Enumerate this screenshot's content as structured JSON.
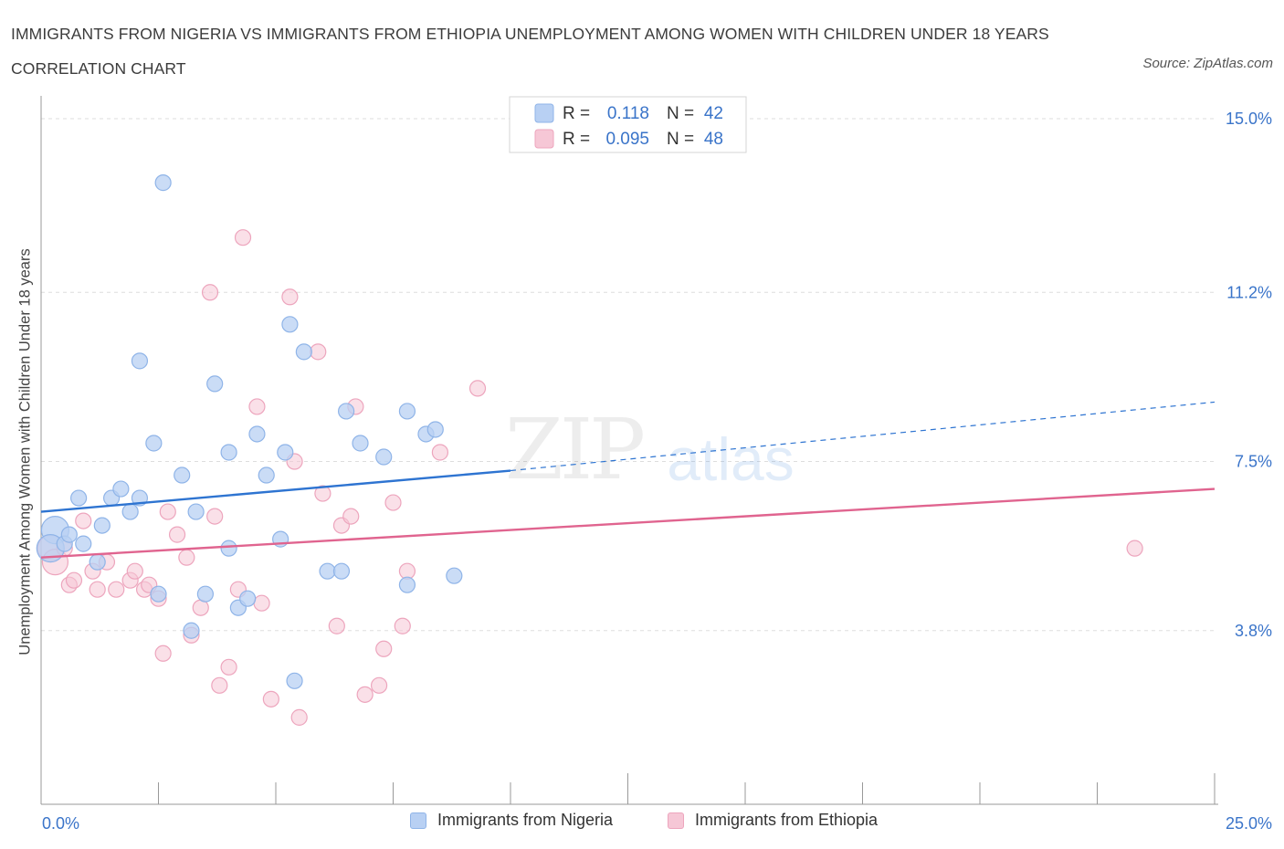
{
  "title": "IMMIGRANTS FROM NIGERIA VS IMMIGRANTS FROM ETHIOPIA UNEMPLOYMENT AMONG WOMEN WITH CHILDREN UNDER 18 YEARS CORRELATION CHART",
  "source": "Source: ZipAtlas.com",
  "watermark": {
    "zip": "ZIP",
    "atlas": "atlas"
  },
  "colors": {
    "nigeria_fill": "#b8d0f3",
    "nigeria_stroke": "#8fb4e8",
    "nigeria_line": "#2e74d1",
    "ethiopia_fill": "#f6c7d6",
    "ethiopia_stroke": "#eda5bd",
    "ethiopia_line": "#e0648f",
    "axis_text": "#3a74c9",
    "grid": "#dddddd"
  },
  "legend_top": {
    "rows": [
      {
        "r_label": "R =",
        "r_value": "0.118",
        "n_label": "N =",
        "n_value": "42"
      },
      {
        "r_label": "R =",
        "r_value": "0.095",
        "n_label": "N =",
        "n_value": "48"
      }
    ]
  },
  "chart_data": {
    "type": "scatter",
    "title": "IMMIGRANTS FROM NIGERIA VS IMMIGRANTS FROM ETHIOPIA UNEMPLOYMENT AMONG WOMEN WITH CHILDREN UNDER 18 YEARS CORRELATION CHART",
    "xlabel": "",
    "ylabel": "Unemployment Among Women with Children Under 18 years",
    "xlim": [
      0,
      25
    ],
    "ylim": [
      0,
      15.3
    ],
    "x_tick_labels": [
      "0.0%",
      "25.0%"
    ],
    "y_ticks": [
      3.8,
      7.5,
      11.2,
      15.0
    ],
    "y_tick_labels": [
      "3.8%",
      "7.5%",
      "11.2%",
      "15.0%"
    ],
    "grid": true,
    "legend_placement": "bottom-center",
    "series": [
      {
        "name": "Immigrants from Nigeria",
        "r": 0.118,
        "n": 42,
        "trend": {
          "x0": 0,
          "y0": 6.4,
          "x1": 10,
          "y1": 7.3,
          "dashed_to_x": 25,
          "dashed_to_y": 8.8
        },
        "points": [
          [
            0.3,
            6.0
          ],
          [
            0.2,
            5.6
          ],
          [
            0.5,
            5.7
          ],
          [
            0.6,
            5.9
          ],
          [
            0.8,
            6.7
          ],
          [
            0.9,
            5.7
          ],
          [
            1.3,
            6.1
          ],
          [
            1.2,
            5.3
          ],
          [
            1.5,
            6.7
          ],
          [
            1.7,
            6.9
          ],
          [
            1.9,
            6.4
          ],
          [
            2.1,
            6.7
          ],
          [
            2.1,
            9.7
          ],
          [
            2.4,
            7.9
          ],
          [
            2.6,
            13.6
          ],
          [
            2.5,
            4.6
          ],
          [
            3.0,
            7.2
          ],
          [
            3.2,
            3.8
          ],
          [
            3.3,
            6.4
          ],
          [
            3.5,
            4.6
          ],
          [
            3.7,
            9.2
          ],
          [
            4.0,
            5.6
          ],
          [
            4.0,
            7.7
          ],
          [
            4.2,
            4.3
          ],
          [
            4.4,
            4.5
          ],
          [
            4.6,
            8.1
          ],
          [
            4.8,
            7.2
          ],
          [
            5.1,
            5.8
          ],
          [
            5.2,
            7.7
          ],
          [
            5.3,
            10.5
          ],
          [
            5.4,
            2.7
          ],
          [
            5.6,
            9.9
          ],
          [
            6.1,
            5.1
          ],
          [
            6.4,
            5.1
          ],
          [
            6.5,
            8.6
          ],
          [
            6.8,
            7.9
          ],
          [
            7.3,
            7.6
          ],
          [
            7.8,
            8.6
          ],
          [
            7.8,
            4.8
          ],
          [
            8.2,
            8.1
          ],
          [
            8.4,
            8.2
          ],
          [
            8.8,
            5.0
          ]
        ]
      },
      {
        "name": "Immigrants from Ethiopia",
        "r": 0.095,
        "n": 48,
        "trend": {
          "x0": 0,
          "y0": 5.4,
          "x1": 25,
          "y1": 6.9
        },
        "points": [
          [
            0.2,
            5.6
          ],
          [
            0.3,
            5.3
          ],
          [
            0.5,
            5.6
          ],
          [
            0.6,
            4.8
          ],
          [
            0.7,
            4.9
          ],
          [
            0.9,
            6.2
          ],
          [
            1.1,
            5.1
          ],
          [
            1.2,
            4.7
          ],
          [
            1.4,
            5.3
          ],
          [
            1.6,
            4.7
          ],
          [
            1.9,
            4.9
          ],
          [
            2.0,
            5.1
          ],
          [
            2.2,
            4.7
          ],
          [
            2.3,
            4.8
          ],
          [
            2.5,
            4.5
          ],
          [
            2.6,
            3.3
          ],
          [
            2.7,
            6.4
          ],
          [
            2.9,
            5.9
          ],
          [
            3.1,
            5.4
          ],
          [
            3.2,
            3.7
          ],
          [
            3.4,
            4.3
          ],
          [
            3.6,
            11.2
          ],
          [
            3.7,
            6.3
          ],
          [
            3.8,
            2.6
          ],
          [
            4.0,
            3.0
          ],
          [
            4.2,
            4.7
          ],
          [
            4.3,
            12.4
          ],
          [
            4.6,
            8.7
          ],
          [
            4.7,
            4.4
          ],
          [
            4.9,
            2.3
          ],
          [
            5.3,
            11.1
          ],
          [
            5.4,
            7.5
          ],
          [
            5.5,
            1.9
          ],
          [
            5.9,
            9.9
          ],
          [
            6.0,
            6.8
          ],
          [
            6.3,
            3.9
          ],
          [
            6.4,
            6.1
          ],
          [
            6.6,
            6.3
          ],
          [
            6.7,
            8.7
          ],
          [
            6.9,
            2.4
          ],
          [
            7.2,
            2.6
          ],
          [
            7.3,
            3.4
          ],
          [
            7.5,
            6.6
          ],
          [
            7.7,
            3.9
          ],
          [
            7.8,
            5.1
          ],
          [
            8.5,
            7.7
          ],
          [
            9.3,
            9.1
          ],
          [
            23.3,
            5.6
          ]
        ]
      }
    ]
  }
}
